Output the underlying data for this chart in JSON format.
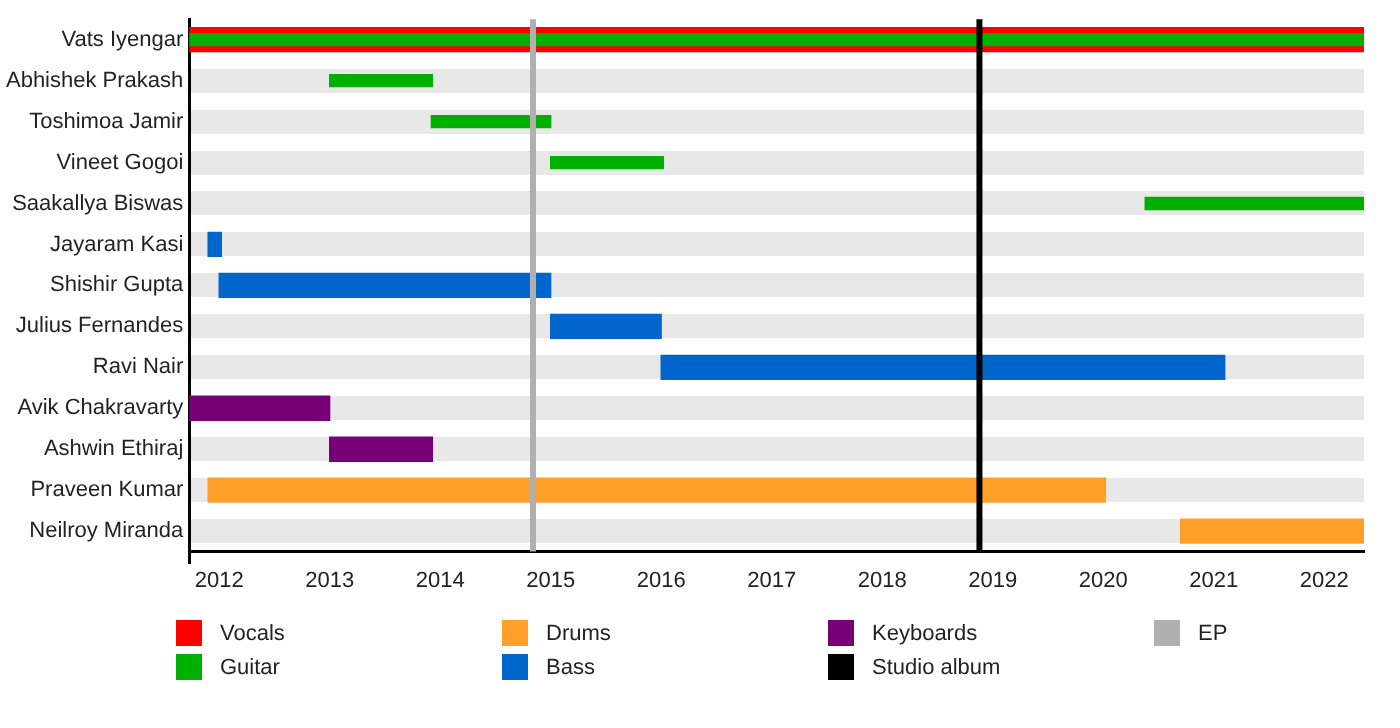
{
  "chart_data": {
    "type": "bar",
    "orientation": "horizontal",
    "categories": [
      "Vats Iyengar",
      "Abhishek Prakash",
      "Toshimoa Jamir",
      "Vineet Gogoi",
      "Saakallya Biswas",
      "Jayaram Kasi",
      "Shishir Gupta",
      "Julius Fernandes",
      "Ravi Nair",
      "Avik Chakravarty",
      "Ashwin Ethiraj",
      "Praveen Kumar",
      "Neilroy Miranda"
    ],
    "series": [
      {
        "name": "Vocals",
        "color": "#ff0000",
        "base": [
          2011.73,
          null,
          null,
          null,
          null,
          null,
          null,
          null,
          null,
          null,
          null,
          null,
          null
        ],
        "values": [
          10.63,
          null,
          null,
          null,
          null,
          null,
          null,
          null,
          null,
          null,
          null,
          null,
          null
        ]
      },
      {
        "name": "Guitar",
        "color": "#00b000",
        "base": [
          2011.73,
          2013.0,
          2013.92,
          2015.0,
          2020.38,
          null,
          null,
          null,
          null,
          null,
          null,
          null,
          null
        ],
        "values": [
          10.63,
          0.93,
          1.08,
          1.02,
          1.98,
          null,
          null,
          null,
          null,
          null,
          null,
          null,
          null
        ]
      },
      {
        "name": "Drums",
        "color": "#ffa02a",
        "base": [
          null,
          null,
          null,
          null,
          null,
          null,
          null,
          null,
          null,
          null,
          null,
          2011.9,
          2020.7
        ],
        "values": [
          null,
          null,
          null,
          null,
          null,
          null,
          null,
          null,
          null,
          null,
          null,
          8.12,
          1.66
        ]
      },
      {
        "name": "Bass",
        "color": "#0066cc",
        "base": [
          null,
          null,
          null,
          null,
          null,
          2011.9,
          2012.0,
          2015.0,
          2016.0,
          null,
          null,
          null,
          null
        ],
        "values": [
          null,
          null,
          null,
          null,
          null,
          0.12,
          3.0,
          1.0,
          5.1,
          null,
          null,
          null,
          null
        ]
      },
      {
        "name": "Keyboards",
        "color": "#770077",
        "base": [
          null,
          null,
          null,
          null,
          null,
          null,
          null,
          null,
          null,
          2011.73,
          2013.0,
          null,
          null
        ],
        "values": [
          null,
          null,
          null,
          null,
          null,
          null,
          null,
          null,
          null,
          1.27,
          0.93,
          null,
          null
        ]
      }
    ],
    "ref_lines": [
      {
        "axis": "x",
        "value": 2018.88,
        "label": "Studio album",
        "color": "#000000"
      },
      {
        "axis": "x",
        "value": 2014.84,
        "label": "EP",
        "color": "#b0b0b0"
      }
    ],
    "xlim": [
      2011.73,
      2022.36
    ],
    "xticks": [
      2012,
      2013,
      2014,
      2015,
      2016,
      2017,
      2018,
      2019,
      2020,
      2021,
      2022
    ],
    "grid": "y",
    "legend": "bottom"
  }
}
